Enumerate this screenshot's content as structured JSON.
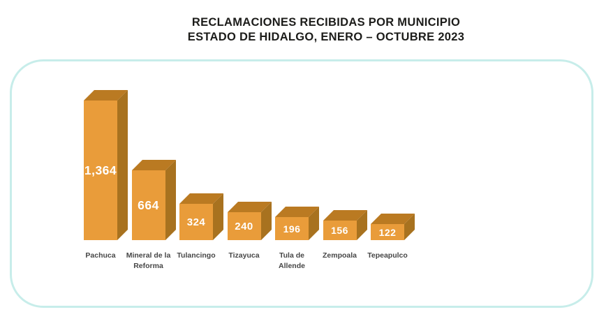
{
  "title": {
    "line1": "RECLAMACIONES RECIBIDAS POR MUNICIPIO",
    "line2": "ESTADO DE HIDALGO, ENERO – OCTUBRE 2023"
  },
  "chart_data": {
    "type": "bar",
    "style": "3d-column",
    "title": "RECLAMACIONES RECIBIDAS POR MUNICIPIO",
    "subtitle": "ESTADO DE HIDALGO, ENERO – OCTUBRE 2023",
    "categories": [
      "Pachuca",
      "Mineral de la Reforma",
      "Tulancingo",
      "Tizayuca",
      "Tula de Allende",
      "Zempoala",
      "Tepeapulco"
    ],
    "category_lines": [
      [
        "Pachuca"
      ],
      [
        "Mineral de la",
        "Reforma"
      ],
      [
        "Tulancingo"
      ],
      [
        "Tizayuca"
      ],
      [
        "Tula de",
        "Allende"
      ],
      [
        "Zempoala"
      ],
      [
        "Tepeapulco"
      ]
    ],
    "values": [
      1364,
      664,
      324,
      240,
      196,
      156,
      122
    ],
    "value_labels": [
      "1,364",
      "664",
      "324",
      "240",
      "196",
      "156",
      "122"
    ],
    "xlabel": "",
    "ylabel": "",
    "legend": false,
    "grid": false,
    "axes_visible": false,
    "ylim": [
      0,
      1400
    ],
    "colors": {
      "bar_front": "#E99C3A",
      "bar_top": "#BA7A22",
      "bar_side": "#A8721F",
      "value_text": "#FFFFFF",
      "category_text": "#464646",
      "title_text": "#1C1C1A",
      "card_border": "#C7EDEA",
      "background": "#FFFFFF"
    }
  }
}
